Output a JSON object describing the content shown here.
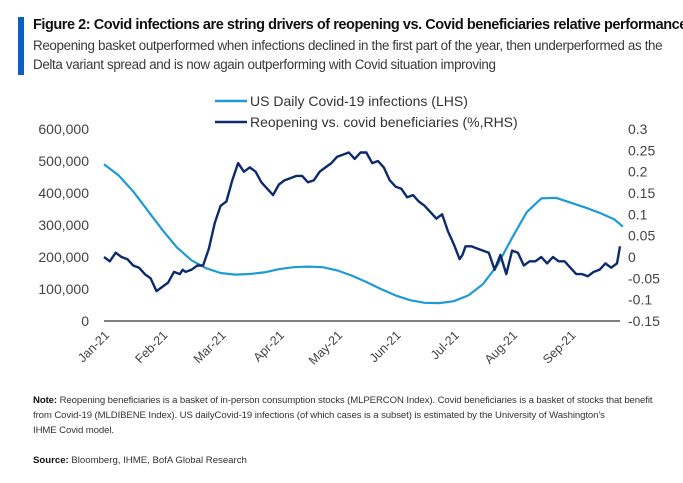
{
  "figure": {
    "title": "Figure 2: Covid infections are string drivers of reopening vs. Covid beneficiaries relative performance",
    "subtitle": "Reopening basket outperformed when infections declined in the first part of the year, then underperformed as the Delta variant spread and is now again outperforming with Covid situation improving",
    "accent_color": "#0a5fbf"
  },
  "notes": {
    "note_label": "Note:",
    "note_text": " Reopening beneficiaries is a basket of in-person consumption stocks (MLPERCON Index). Covid beneficiaries is a basket of stocks that benefit from Covid-19 (MLDIBENE Index). US dailyCovid-19 infections (of which cases is a subset) is estimated by the University of Washington's",
    "note_text_2": "IHME Covid model.",
    "source_label": "Source:",
    "source_text": " Bloomberg, IHME, BofA Global Research"
  },
  "chart_data": {
    "type": "line",
    "title": "Covid infections are string drivers of reopening vs. Covid beneficiaries relative performance",
    "xlabel": "",
    "ylabel_left": "",
    "ylabel_right": "",
    "x_ticks": [
      "Jan-21",
      "Feb-21",
      "Mar-21",
      "Apr-21",
      "May-21",
      "Jun-21",
      "Jul-21",
      "Aug-21",
      "Sep-21"
    ],
    "x_range_months": [
      0,
      8.9
    ],
    "y_left": {
      "range": [
        0,
        600000
      ],
      "ticks": [
        "0",
        "100,000",
        "200,000",
        "300,000",
        "400,000",
        "500,000",
        "600,000"
      ]
    },
    "y_right": {
      "range": [
        -0.15,
        0.3
      ],
      "ticks": [
        "-0.15",
        "-0.1",
        "-0.05",
        "0",
        "0.05",
        "0.1",
        "0.15",
        "0.2",
        "0.25",
        "0.3"
      ]
    },
    "legend": {
      "position": "top-center",
      "entries": [
        "US Daily Covid-19 infections (LHS)",
        "Reopening vs. covid beneficiaries (%,RHS)"
      ]
    },
    "grid": false,
    "series": [
      {
        "name": "US Daily Covid-19 infections (LHS)",
        "axis": "left",
        "color": "#1e9ad6",
        "x": [
          0,
          0.25,
          0.5,
          0.75,
          1.0,
          1.25,
          1.5,
          1.75,
          2.0,
          2.25,
          2.5,
          2.75,
          3.0,
          3.25,
          3.5,
          3.75,
          4.0,
          4.25,
          4.5,
          4.75,
          5.0,
          5.25,
          5.5,
          5.75,
          6.0,
          6.25,
          6.5,
          6.75,
          7.0,
          7.25,
          7.5,
          7.75,
          8.0,
          8.25,
          8.5,
          8.75,
          8.9
        ],
        "values": [
          490000,
          455000,
          405000,
          345000,
          285000,
          230000,
          190000,
          165000,
          150000,
          145000,
          147000,
          152000,
          162000,
          168000,
          170000,
          168000,
          158000,
          142000,
          122000,
          100000,
          80000,
          65000,
          57000,
          56000,
          62000,
          80000,
          115000,
          175000,
          260000,
          340000,
          383000,
          385000,
          370000,
          355000,
          338000,
          318000,
          295000
        ]
      },
      {
        "name": "Reopening vs. covid beneficiaries (%,RHS)",
        "axis": "right",
        "color": "#0d2a6e",
        "x": [
          0,
          0.1,
          0.2,
          0.3,
          0.4,
          0.5,
          0.6,
          0.7,
          0.8,
          0.9,
          1.0,
          1.1,
          1.2,
          1.3,
          1.35,
          1.4,
          1.5,
          1.6,
          1.7,
          1.8,
          1.9,
          2.0,
          2.1,
          2.2,
          2.3,
          2.4,
          2.5,
          2.6,
          2.7,
          2.8,
          2.9,
          3.0,
          3.1,
          3.2,
          3.3,
          3.4,
          3.5,
          3.6,
          3.7,
          3.8,
          3.9,
          4.0,
          4.1,
          4.2,
          4.3,
          4.4,
          4.5,
          4.6,
          4.7,
          4.8,
          4.9,
          5.0,
          5.1,
          5.2,
          5.3,
          5.4,
          5.5,
          5.6,
          5.7,
          5.8,
          5.9,
          6.0,
          6.1,
          6.15,
          6.2,
          6.3,
          6.4,
          6.5,
          6.6,
          6.7,
          6.8,
          6.9,
          7.0,
          7.1,
          7.2,
          7.3,
          7.4,
          7.5,
          7.6,
          7.7,
          7.8,
          7.9,
          8.0,
          8.1,
          8.2,
          8.3,
          8.4,
          8.5,
          8.6,
          8.7,
          8.8,
          8.85
        ],
        "values": [
          0.0,
          -0.01,
          0.01,
          0.0,
          -0.005,
          -0.02,
          -0.025,
          -0.04,
          -0.05,
          -0.08,
          -0.07,
          -0.06,
          -0.035,
          -0.04,
          -0.03,
          -0.035,
          -0.03,
          -0.02,
          -0.02,
          0.02,
          0.08,
          0.12,
          0.13,
          0.18,
          0.22,
          0.2,
          0.21,
          0.2,
          0.175,
          0.16,
          0.145,
          0.17,
          0.18,
          0.185,
          0.19,
          0.19,
          0.175,
          0.18,
          0.2,
          0.21,
          0.22,
          0.235,
          0.24,
          0.245,
          0.23,
          0.245,
          0.245,
          0.22,
          0.225,
          0.21,
          0.18,
          0.165,
          0.16,
          0.14,
          0.145,
          0.13,
          0.12,
          0.105,
          0.09,
          0.1,
          0.06,
          0.03,
          -0.005,
          0.005,
          0.025,
          0.025,
          0.02,
          0.015,
          0.01,
          -0.03,
          0.005,
          -0.04,
          0.015,
          0.01,
          -0.02,
          -0.01,
          -0.01,
          0.0,
          -0.015,
          0.0,
          -0.01,
          -0.01,
          -0.025,
          -0.04,
          -0.04,
          -0.045,
          -0.035,
          -0.03,
          -0.015,
          -0.025,
          -0.015,
          0.025
        ]
      }
    ]
  }
}
